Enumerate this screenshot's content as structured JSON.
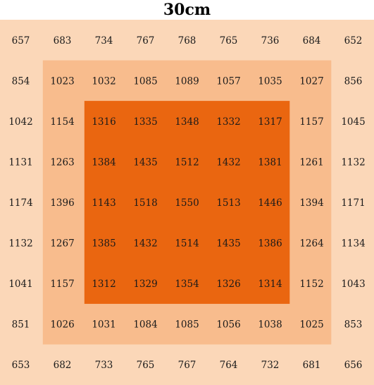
{
  "chart_data": {
    "type": "heatmap",
    "title": "30cm",
    "rows": 9,
    "cols": 9,
    "values": [
      [
        657,
        683,
        734,
        767,
        768,
        765,
        736,
        684,
        652
      ],
      [
        854,
        1023,
        1032,
        1085,
        1089,
        1057,
        1035,
        1027,
        856
      ],
      [
        1042,
        1154,
        1316,
        1335,
        1348,
        1332,
        1317,
        1157,
        1045
      ],
      [
        1131,
        1263,
        1384,
        1435,
        1512,
        1432,
        1381,
        1261,
        1132
      ],
      [
        1174,
        1396,
        1143,
        1518,
        1550,
        1513,
        1446,
        1394,
        1171
      ],
      [
        1132,
        1267,
        1385,
        1432,
        1514,
        1435,
        1386,
        1264,
        1134
      ],
      [
        1041,
        1157,
        1312,
        1329,
        1354,
        1326,
        1314,
        1152,
        1043
      ],
      [
        851,
        1026,
        1031,
        1084,
        1085,
        1056,
        1038,
        1025,
        853
      ],
      [
        653,
        682,
        733,
        765,
        767,
        764,
        732,
        681,
        656
      ]
    ],
    "zones": [
      {
        "rows": [
          0,
          8
        ],
        "cols": [
          0,
          8
        ],
        "color": "#FBD7B8"
      },
      {
        "rows": [
          1,
          7
        ],
        "cols": [
          1,
          7
        ],
        "color": "#F8BC8D"
      },
      {
        "rows": [
          2,
          6
        ],
        "cols": [
          2,
          6
        ],
        "color": "#EA6610"
      }
    ]
  }
}
